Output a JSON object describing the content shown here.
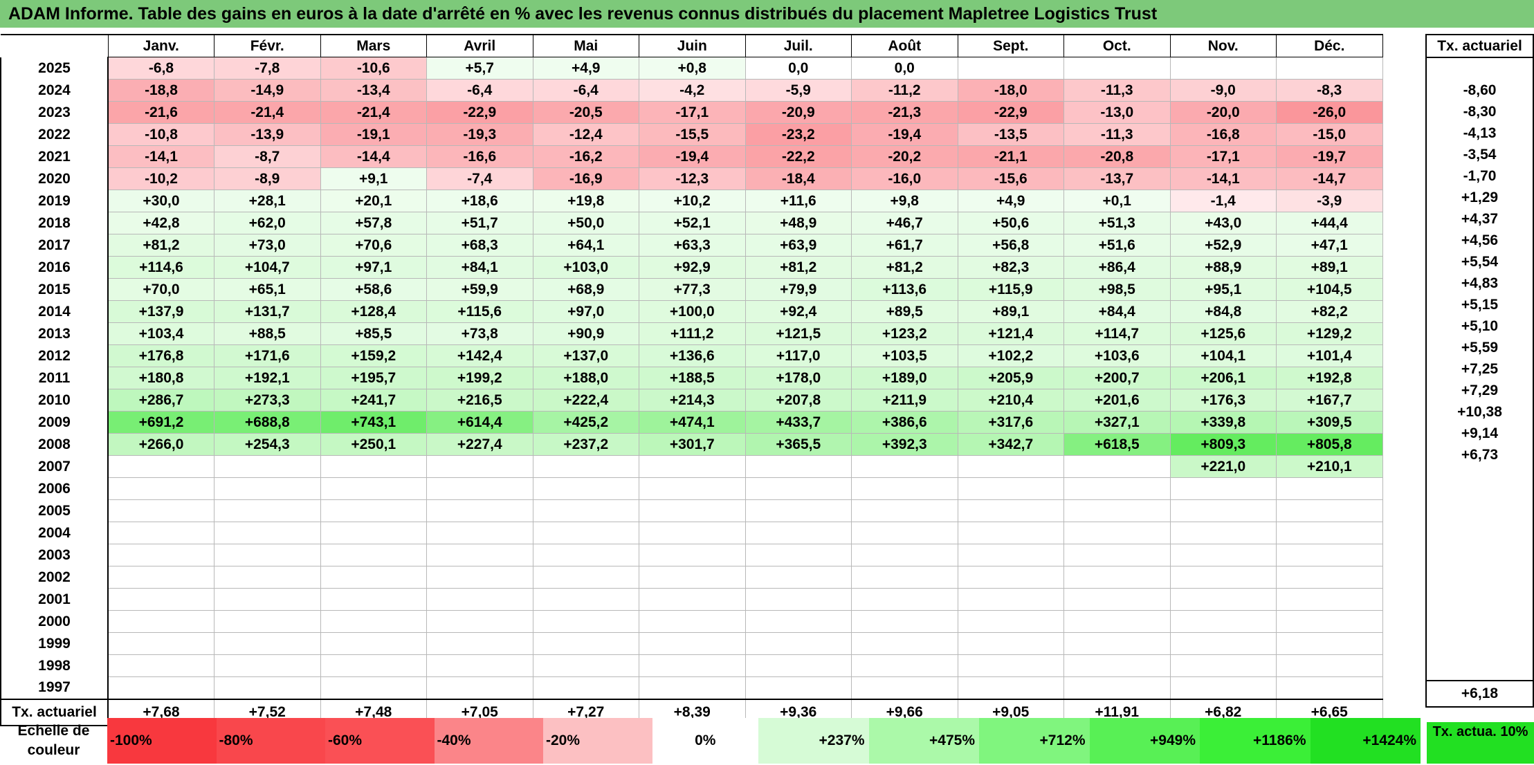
{
  "title": "ADAM Informe. Table des gains en euros à la date d'arrêté en % avec les revenus connus distribués du placement Mapletree Logistics Trust",
  "months": [
    "Janv.",
    "Févr.",
    "Mars",
    "Avril",
    "Mai",
    "Juin",
    "Juil.",
    "Août",
    "Sept.",
    "Oct.",
    "Nov.",
    "Déc."
  ],
  "tx_header": "Tx. actuariel",
  "rows": [
    {
      "year": "2025",
      "cells": [
        "-6,8",
        "-7,8",
        "-10,6",
        "+5,7",
        "+4,9",
        "+0,8",
        "0,0",
        "0,0",
        "",
        "",
        "",
        ""
      ],
      "tx": ""
    },
    {
      "year": "2024",
      "cells": [
        "-18,8",
        "-14,9",
        "-13,4",
        "-6,4",
        "-6,4",
        "-4,2",
        "-5,9",
        "-11,2",
        "-18,0",
        "-11,3",
        "-9,0",
        "-8,3"
      ],
      "tx": "-8,60"
    },
    {
      "year": "2023",
      "cells": [
        "-21,6",
        "-21,4",
        "-21,4",
        "-22,9",
        "-20,5",
        "-17,1",
        "-20,9",
        "-21,3",
        "-22,9",
        "-13,0",
        "-20,0",
        "-26,0"
      ],
      "tx": "-8,30"
    },
    {
      "year": "2022",
      "cells": [
        "-10,8",
        "-13,9",
        "-19,1",
        "-19,3",
        "-12,4",
        "-15,5",
        "-23,2",
        "-19,4",
        "-13,5",
        "-11,3",
        "-16,8",
        "-15,0"
      ],
      "tx": "-4,13"
    },
    {
      "year": "2021",
      "cells": [
        "-14,1",
        "-8,7",
        "-14,4",
        "-16,6",
        "-16,2",
        "-19,4",
        "-22,2",
        "-20,2",
        "-21,1",
        "-20,8",
        "-17,1",
        "-19,7"
      ],
      "tx": "-3,54"
    },
    {
      "year": "2020",
      "cells": [
        "-10,2",
        "-8,9",
        "+9,1",
        "-7,4",
        "-16,9",
        "-12,3",
        "-18,4",
        "-16,0",
        "-15,6",
        "-13,7",
        "-14,1",
        "-14,7"
      ],
      "tx": "-1,70"
    },
    {
      "year": "2019",
      "cells": [
        "+30,0",
        "+28,1",
        "+20,1",
        "+18,6",
        "+19,8",
        "+10,2",
        "+11,6",
        "+9,8",
        "+4,9",
        "+0,1",
        "-1,4",
        "-3,9"
      ],
      "tx": "+1,29"
    },
    {
      "year": "2018",
      "cells": [
        "+42,8",
        "+62,0",
        "+57,8",
        "+51,7",
        "+50,0",
        "+52,1",
        "+48,9",
        "+46,7",
        "+50,6",
        "+51,3",
        "+43,0",
        "+44,4"
      ],
      "tx": "+4,37"
    },
    {
      "year": "2017",
      "cells": [
        "+81,2",
        "+73,0",
        "+70,6",
        "+68,3",
        "+64,1",
        "+63,3",
        "+63,9",
        "+61,7",
        "+56,8",
        "+51,6",
        "+52,9",
        "+47,1"
      ],
      "tx": "+4,56"
    },
    {
      "year": "2016",
      "cells": [
        "+114,6",
        "+104,7",
        "+97,1",
        "+84,1",
        "+103,0",
        "+92,9",
        "+81,2",
        "+81,2",
        "+82,3",
        "+86,4",
        "+88,9",
        "+89,1"
      ],
      "tx": "+5,54"
    },
    {
      "year": "2015",
      "cells": [
        "+70,0",
        "+65,1",
        "+58,6",
        "+59,9",
        "+68,9",
        "+77,3",
        "+79,9",
        "+113,6",
        "+115,9",
        "+98,5",
        "+95,1",
        "+104,5"
      ],
      "tx": "+4,83"
    },
    {
      "year": "2014",
      "cells": [
        "+137,9",
        "+131,7",
        "+128,4",
        "+115,6",
        "+97,0",
        "+100,0",
        "+92,4",
        "+89,5",
        "+89,1",
        "+84,4",
        "+84,8",
        "+82,2"
      ],
      "tx": "+5,15"
    },
    {
      "year": "2013",
      "cells": [
        "+103,4",
        "+88,5",
        "+85,5",
        "+73,8",
        "+90,9",
        "+111,2",
        "+121,5",
        "+123,2",
        "+121,4",
        "+114,7",
        "+125,6",
        "+129,2"
      ],
      "tx": "+5,10"
    },
    {
      "year": "2012",
      "cells": [
        "+176,8",
        "+171,6",
        "+159,2",
        "+142,4",
        "+137,0",
        "+136,6",
        "+117,0",
        "+103,5",
        "+102,2",
        "+103,6",
        "+104,1",
        "+101,4"
      ],
      "tx": "+5,59"
    },
    {
      "year": "2011",
      "cells": [
        "+180,8",
        "+192,1",
        "+195,7",
        "+199,2",
        "+188,0",
        "+188,5",
        "+178,0",
        "+189,0",
        "+205,9",
        "+200,7",
        "+206,1",
        "+192,8"
      ],
      "tx": "+7,25"
    },
    {
      "year": "2010",
      "cells": [
        "+286,7",
        "+273,3",
        "+241,7",
        "+216,5",
        "+222,4",
        "+214,3",
        "+207,8",
        "+211,9",
        "+210,4",
        "+201,6",
        "+176,3",
        "+167,7"
      ],
      "tx": "+7,29"
    },
    {
      "year": "2009",
      "cells": [
        "+691,2",
        "+688,8",
        "+743,1",
        "+614,4",
        "+425,2",
        "+474,1",
        "+433,7",
        "+386,6",
        "+317,6",
        "+327,1",
        "+339,8",
        "+309,5"
      ],
      "tx": "+10,38"
    },
    {
      "year": "2008",
      "cells": [
        "+266,0",
        "+254,3",
        "+250,1",
        "+227,4",
        "+237,2",
        "+301,7",
        "+365,5",
        "+392,3",
        "+342,7",
        "+618,5",
        "+809,3",
        "+805,8"
      ],
      "tx": "+9,14"
    },
    {
      "year": "2007",
      "cells": [
        "",
        "",
        "",
        "",
        "",
        "",
        "",
        "",
        "",
        "",
        "+221,0",
        "+210,1"
      ],
      "tx": "+6,73"
    },
    {
      "year": "2006",
      "cells": [
        "",
        "",
        "",
        "",
        "",
        "",
        "",
        "",
        "",
        "",
        "",
        ""
      ],
      "tx": ""
    },
    {
      "year": "2005",
      "cells": [
        "",
        "",
        "",
        "",
        "",
        "",
        "",
        "",
        "",
        "",
        "",
        ""
      ],
      "tx": ""
    },
    {
      "year": "2004",
      "cells": [
        "",
        "",
        "",
        "",
        "",
        "",
        "",
        "",
        "",
        "",
        "",
        ""
      ],
      "tx": ""
    },
    {
      "year": "2003",
      "cells": [
        "",
        "",
        "",
        "",
        "",
        "",
        "",
        "",
        "",
        "",
        "",
        ""
      ],
      "tx": ""
    },
    {
      "year": "2002",
      "cells": [
        "",
        "",
        "",
        "",
        "",
        "",
        "",
        "",
        "",
        "",
        "",
        ""
      ],
      "tx": ""
    },
    {
      "year": "2001",
      "cells": [
        "",
        "",
        "",
        "",
        "",
        "",
        "",
        "",
        "",
        "",
        "",
        ""
      ],
      "tx": ""
    },
    {
      "year": "2000",
      "cells": [
        "",
        "",
        "",
        "",
        "",
        "",
        "",
        "",
        "",
        "",
        "",
        ""
      ],
      "tx": ""
    },
    {
      "year": "1999",
      "cells": [
        "",
        "",
        "",
        "",
        "",
        "",
        "",
        "",
        "",
        "",
        "",
        ""
      ],
      "tx": ""
    },
    {
      "year": "1998",
      "cells": [
        "",
        "",
        "",
        "",
        "",
        "",
        "",
        "",
        "",
        "",
        "",
        ""
      ],
      "tx": ""
    },
    {
      "year": "1997",
      "cells": [
        "",
        "",
        "",
        "",
        "",
        "",
        "",
        "",
        "",
        "",
        "",
        ""
      ],
      "tx": ""
    }
  ],
  "tx_row": {
    "label": "Tx. actuariel",
    "cells": [
      "+7,68",
      "+7,52",
      "+7,48",
      "+7,05",
      "+7,27",
      "+8,39",
      "+9,36",
      "+9,66",
      "+9,05",
      "+11,91",
      "+6,82",
      "+6,65"
    ],
    "total": "+6,18"
  },
  "legend": {
    "label": "Echelle de couleur",
    "items": [
      "-100%",
      "-80%",
      "-60%",
      "-40%",
      "-20%",
      "0%",
      "+237%",
      "+475%",
      "+712%",
      "+949%",
      "+1186%",
      "+1424%"
    ],
    "colors": [
      "#f8383e",
      "#f9474c",
      "#fa5055",
      "#fb8589",
      "#fcc0c2",
      "#ffffff",
      "#d6fbd6",
      "#abf9a9",
      "#80f57e",
      "#58f055",
      "#3bef37",
      "#22e022"
    ],
    "tx_label": "Tx. actua. 10%"
  },
  "scale": {
    "neg_max": 26.0,
    "pos_max": 809.3
  }
}
